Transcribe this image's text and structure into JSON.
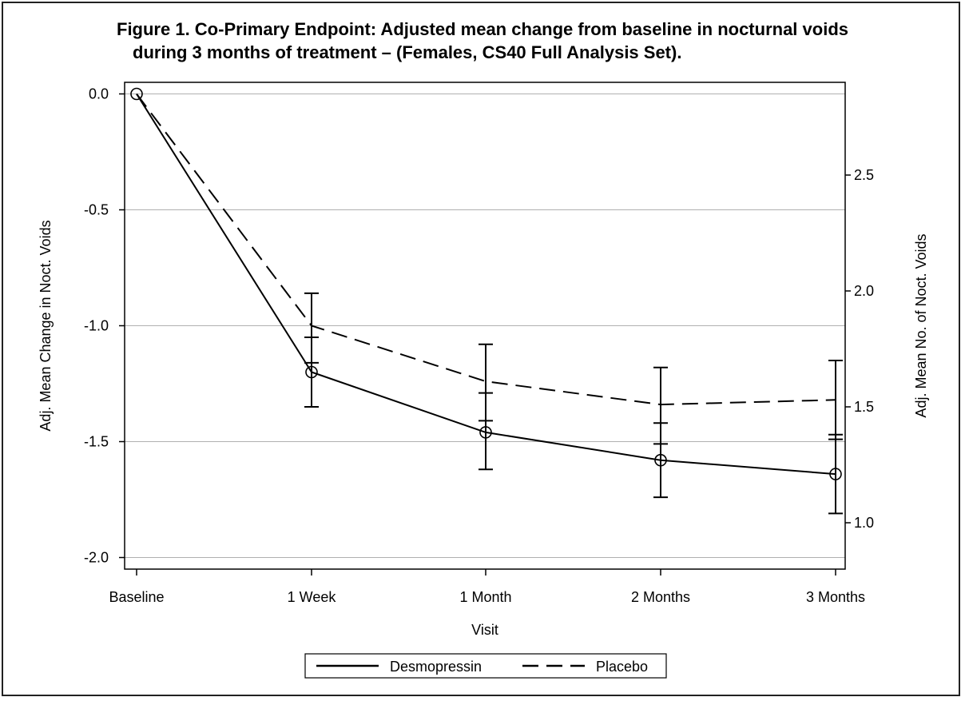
{
  "title_line1": "Figure 1. Co-Primary Endpoint: Adjusted mean change from baseline in nocturnal voids",
  "title_line2": "during 3 months of treatment – (Females, CS40 Full Analysis Set).",
  "chart_data": {
    "type": "line",
    "title": "Figure 1. Co-Primary Endpoint: Adjusted mean change from baseline in nocturnal voids during 3 months of treatment – (Females, CS40 Full Analysis Set).",
    "xlabel": "Visit",
    "ylabel": "Adj. Mean Change in Noct. Voids",
    "y2label": "Adj. Mean No. of Noct. Voids",
    "categories": [
      "Baseline",
      "1 Week",
      "1 Month",
      "2 Months",
      "3 Months"
    ],
    "ylim": [
      -2.05,
      0.05
    ],
    "yticks": [
      "0.0",
      "-0.5",
      "-1.0",
      "-1.5",
      "-2.0"
    ],
    "ytick_values": [
      0.0,
      -0.5,
      -1.0,
      -1.5,
      -2.0
    ],
    "y2lim": [
      0.8,
      2.9
    ],
    "y2ticks": [
      "2.5",
      "2.0",
      "1.5",
      "1.0"
    ],
    "y2tick_values": [
      2.5,
      2.0,
      1.5,
      1.0
    ],
    "grid": true,
    "legend_position": "bottom",
    "series": [
      {
        "name": "Desmopressin",
        "style": "solid",
        "markers": true,
        "values": [
          0.0,
          -1.2,
          -1.46,
          -1.58,
          -1.64
        ],
        "err_low": [
          null,
          -1.35,
          -1.62,
          -1.74,
          -1.81
        ],
        "err_high": [
          null,
          -1.05,
          -1.29,
          -1.42,
          -1.47
        ]
      },
      {
        "name": "Placebo",
        "style": "dashed",
        "markers": false,
        "values": [
          0.0,
          -1.0,
          -1.24,
          -1.34,
          -1.32
        ],
        "err_low": [
          null,
          -1.16,
          -1.41,
          -1.51,
          -1.49
        ],
        "err_high": [
          null,
          -0.86,
          -1.08,
          -1.18,
          -1.15
        ]
      }
    ]
  }
}
